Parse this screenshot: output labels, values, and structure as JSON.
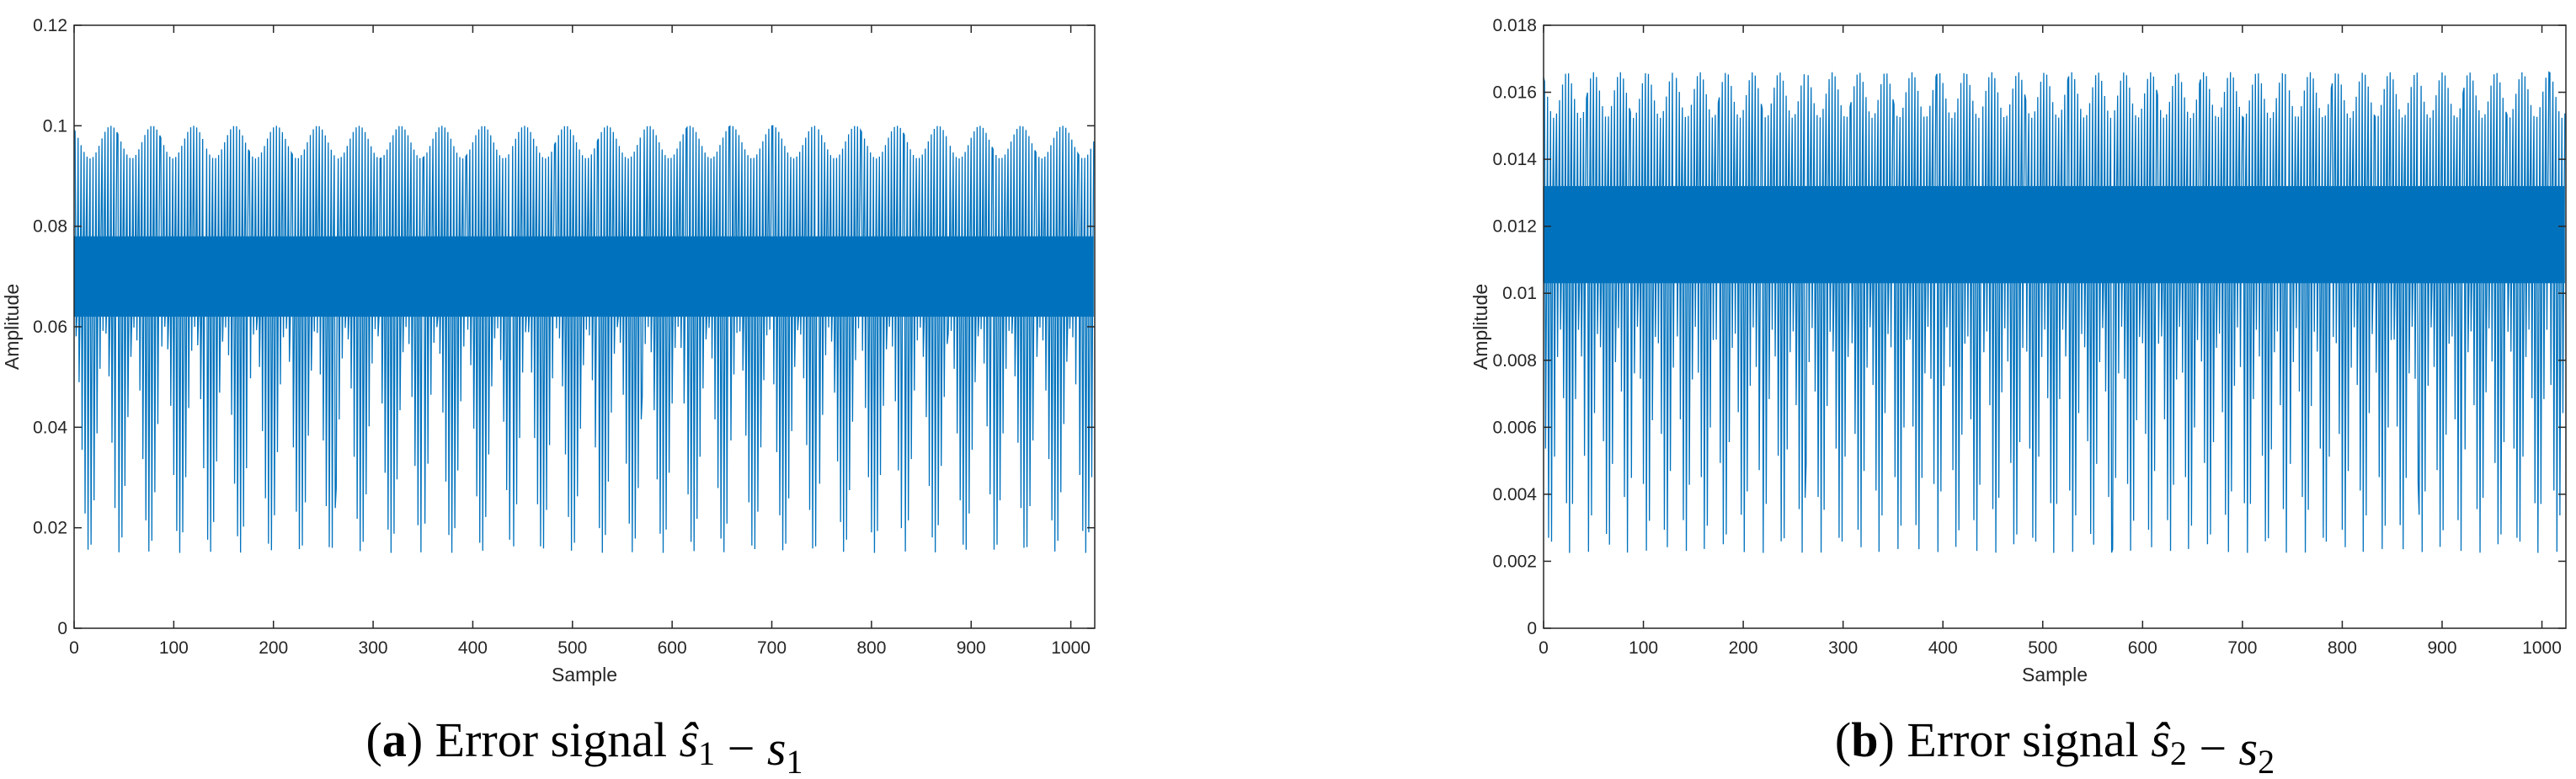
{
  "chart_data": [
    {
      "id": "a",
      "type": "line",
      "caption": {
        "open": "(",
        "letter": "a",
        "close": ")",
        "text": "Error signal",
        "hat_var": "ŝ",
        "hat_sub": "1",
        "minus": "−",
        "var": "s",
        "var_sub": "1"
      },
      "xlabel": "Sample",
      "ylabel": "Amplitude",
      "xlim": [
        0,
        1024
      ],
      "ylim": [
        0,
        0.12
      ],
      "xticks": [
        0,
        100,
        200,
        300,
        400,
        500,
        600,
        700,
        800,
        900,
        1000
      ],
      "xtick_labels": [
        "0",
        "100",
        "200",
        "300",
        "400",
        "500",
        "600",
        "700",
        "800",
        "900",
        "1000"
      ],
      "yticks": [
        0,
        0.02,
        0.04,
        0.06,
        0.08,
        0.1,
        0.12
      ],
      "ytick_labels": [
        "0",
        "0.02",
        "0.04",
        "0.06",
        "0.08",
        "0.1",
        "0.12"
      ],
      "color": "#0072BD",
      "series": [
        {
          "n_samples": 1024,
          "mean": 0.069,
          "upper_envelope": [
            0.09,
            0.1
          ],
          "lower_envelope": [
            0.0,
            0.06
          ],
          "dense_band": [
            0.062,
            0.078
          ],
          "period_samples": 3.07,
          "envelope_period_samples": 30.3
        }
      ]
    },
    {
      "id": "b",
      "type": "line",
      "caption": {
        "open": "(",
        "letter": "b",
        "close": ")",
        "text": "Error signal",
        "hat_var": "ŝ",
        "hat_sub": "2",
        "minus": "−",
        "var": "s",
        "var_sub": "2"
      },
      "xlabel": "Sample",
      "ylabel": "Amplitude",
      "xlim": [
        0,
        1024
      ],
      "ylim": [
        0,
        0.018
      ],
      "xticks": [
        0,
        100,
        200,
        300,
        400,
        500,
        600,
        700,
        800,
        900,
        1000
      ],
      "xtick_labels": [
        "0",
        "100",
        "200",
        "300",
        "400",
        "500",
        "600",
        "700",
        "800",
        "900",
        "1000"
      ],
      "yticks": [
        0,
        0.002,
        0.004,
        0.006,
        0.008,
        0.01,
        0.012,
        0.014,
        0.016,
        0.018
      ],
      "ytick_labels": [
        "0",
        "0.002",
        "0.004",
        "0.006",
        "0.008",
        "0.01",
        "0.012",
        "0.014",
        "0.016",
        "0.018"
      ],
      "color": "#0072BD",
      "series": [
        {
          "n_samples": 1024,
          "mean": 0.0117,
          "upper_envelope": [
            0.0145,
            0.0166
          ],
          "lower_envelope": [
            0.0,
            0.009
          ],
          "dense_band": [
            0.0103,
            0.0132
          ],
          "period_samples": 3.07,
          "envelope_period_samples": 19.4
        }
      ]
    }
  ]
}
